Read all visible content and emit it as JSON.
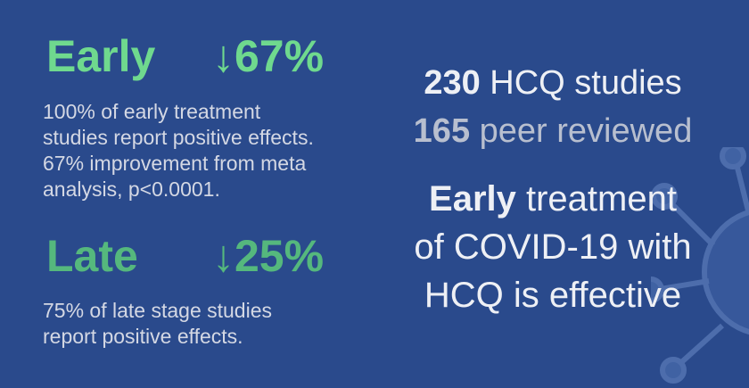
{
  "early": {
    "label": "Early",
    "stat": "↓67%",
    "lines": [
      "100% of early treatment",
      "studies report positive effects.",
      "67% improvement from meta",
      "analysis, p<0.0001."
    ]
  },
  "late": {
    "label": "Late",
    "stat": "↓25%",
    "lines": [
      "75% of late stage studies",
      "report positive effects."
    ]
  },
  "summary": {
    "studies_count": "230",
    "studies_label": "HCQ studies",
    "peer_count": "165",
    "peer_label": "peer reviewed",
    "headline_bold": "Early",
    "headline_rest": "treatment",
    "headline_line2": "of COVID-19 with",
    "headline_line3": "HCQ is effective"
  },
  "colors": {
    "background": "#2a4a8c",
    "early": "#6fd98e",
    "late": "#55b87d"
  }
}
